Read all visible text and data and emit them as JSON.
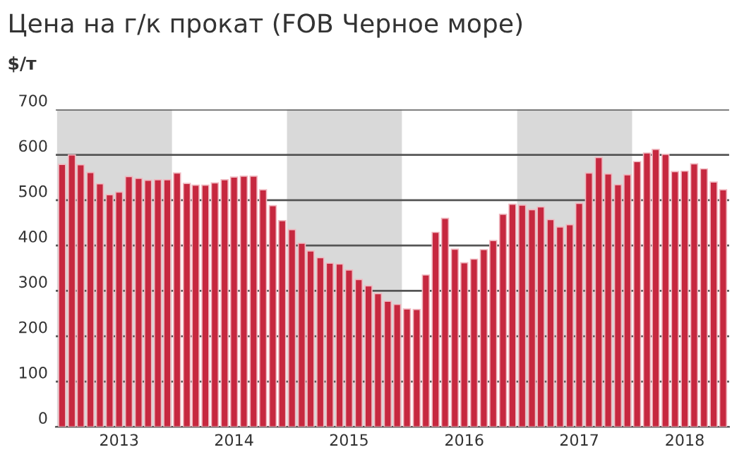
{
  "chart_data": {
    "type": "bar",
    "title": "Цена на г/к прокат (FOB Черное море)",
    "ylabel": "$/т",
    "x": [
      "2013-01",
      "2013-02",
      "2013-03",
      "2013-04",
      "2013-05",
      "2013-06",
      "2013-07",
      "2013-08",
      "2013-09",
      "2013-10",
      "2013-11",
      "2013-12",
      "2014-01",
      "2014-02",
      "2014-03",
      "2014-04",
      "2014-05",
      "2014-06",
      "2014-07",
      "2014-08",
      "2014-09",
      "2014-10",
      "2014-11",
      "2014-12",
      "2015-01",
      "2015-02",
      "2015-03",
      "2015-04",
      "2015-05",
      "2015-06",
      "2015-07",
      "2015-08",
      "2015-09",
      "2015-10",
      "2015-11",
      "2015-12",
      "2016-01",
      "2016-02",
      "2016-03",
      "2016-04",
      "2016-05",
      "2016-06",
      "2016-07",
      "2016-08",
      "2016-09",
      "2016-10",
      "2016-11",
      "2016-12",
      "2017-01",
      "2017-02",
      "2017-03",
      "2017-04",
      "2017-05",
      "2017-06",
      "2017-07",
      "2017-08",
      "2017-09",
      "2017-10",
      "2017-11",
      "2017-12",
      "2018-01",
      "2018-02",
      "2018-03",
      "2018-04",
      "2018-05",
      "2018-06",
      "2018-07",
      "2018-08",
      "2018-09",
      "2018-10"
    ],
    "values": [
      579,
      600,
      578,
      561,
      536,
      512,
      518,
      552,
      548,
      544,
      545,
      545,
      560,
      537,
      533,
      533,
      538,
      545,
      551,
      553,
      553,
      523,
      488,
      455,
      435,
      405,
      388,
      373,
      361,
      359,
      346,
      325,
      311,
      294,
      277,
      270,
      260,
      259,
      335,
      429,
      460,
      392,
      362,
      370,
      391,
      411,
      469,
      491,
      489,
      479,
      485,
      457,
      441,
      446,
      493,
      560,
      594,
      558,
      534,
      556,
      585,
      604,
      612,
      601,
      563,
      564,
      580,
      569,
      540,
      523
    ],
    "color": "#c6283f",
    "xlim": [
      "2012-12-12",
      "2018-10-20"
    ],
    "xticks": [
      {
        "value": "2013-07-01",
        "label": "2013"
      },
      {
        "value": "2014-07-01",
        "label": "2014"
      },
      {
        "value": "2015-07-01",
        "label": "2015"
      },
      {
        "value": "2016-07-01",
        "label": "2016"
      },
      {
        "value": "2017-07-01",
        "label": "2017"
      },
      {
        "value": "2018-06-01",
        "label": "2018"
      }
    ],
    "ylim": [
      0,
      700
    ],
    "yticks": [
      0,
      100,
      200,
      300,
      400,
      500,
      600,
      700
    ],
    "grid": "y",
    "bands": [
      {
        "axis": "x",
        "from": "2012-12-16",
        "to": "2013-12-16",
        "color": "#d9d9d9"
      },
      {
        "axis": "x",
        "from": "2014-12-16",
        "to": "2015-12-16",
        "color": "#d9d9d9"
      },
      {
        "axis": "x",
        "from": "2016-12-16",
        "to": "2017-12-16",
        "color": "#d9d9d9"
      }
    ]
  }
}
